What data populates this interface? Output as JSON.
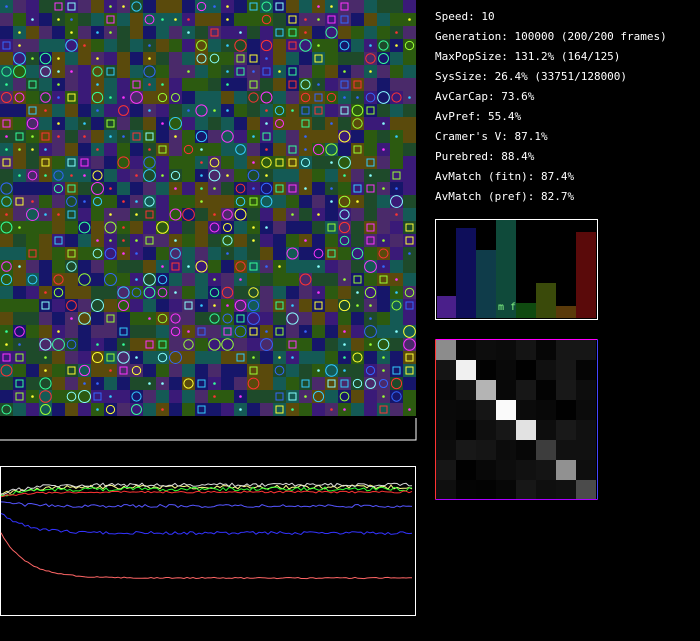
{
  "stats": [
    "Speed: 10",
    "Generation: 100000 (200/200 frames)",
    "MaxPopSize: 131.2% (164/125)",
    "SysSize: 26.4% (33751/128000)",
    "AvCarCap: 73.6%",
    "AvPref: 55.4%",
    "Cramer's V: 87.1%",
    "Purebred: 88.4%",
    "AvMatch (fitn): 87.4%",
    "AvMatch (pref): 82.7%"
  ],
  "histogram": {
    "label": "m f"
  }
}
